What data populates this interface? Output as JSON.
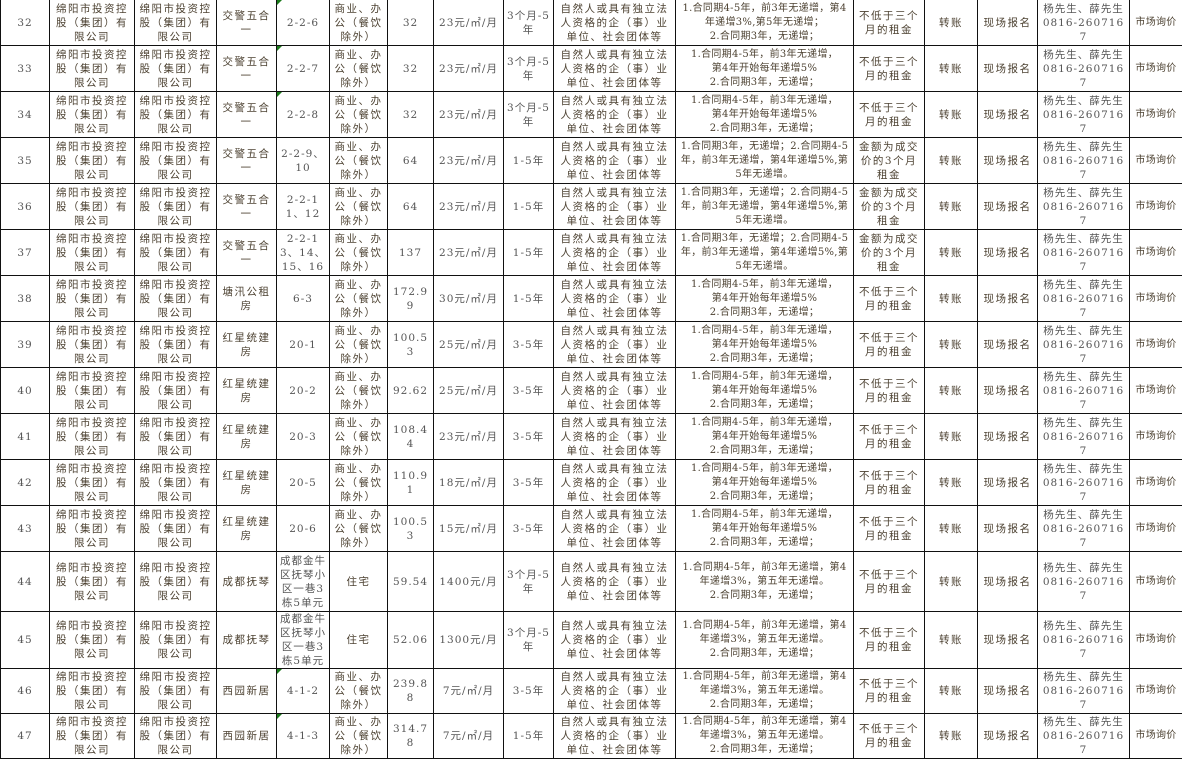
{
  "colors": {
    "text": "#4d4232",
    "border": "#111111",
    "comment_marker": "#1a7a1a"
  },
  "rows": [
    {
      "no": "32",
      "lessor": "绵阳市投资控股（集团）有限公司",
      "owner": "绵阳市投资控股（集团）有限公司",
      "project": "交警五合一",
      "unit": "2-2-6",
      "use": "商业、办公（餐饮除外）",
      "area": "32",
      "price": "23元/㎡/月",
      "term": "3个月-5年",
      "requirement": "自然人或具有独立法人资格的企（事）业单位、社会团体等",
      "increment": "1.合同期4-5年，前3年无递增，第4年递增3%,第5年无递增；\n2.合同期3年，无递增；",
      "deposit": "不低于三个月的租金",
      "payment": "转账",
      "registration": "现场报名",
      "contact": "杨先生、薛先生\n0816-2607167",
      "base_price": "市场询价",
      "marker": true
    },
    {
      "no": "33",
      "lessor": "绵阳市投资控股（集团）有限公司",
      "owner": "绵阳市投资控股（集团）有限公司",
      "project": "交警五合一",
      "unit": "2-2-7",
      "use": "商业、办公（餐饮除外）",
      "area": "32",
      "price": "23元/㎡/月",
      "term": "3个月-5年",
      "requirement": "自然人或具有独立法人资格的企（事）业单位、社会团体等",
      "increment": "1.合同期4-5年，前3年无递增，\n第4年开始每年递增5%\n2.合同期3年，无递增；",
      "deposit": "不低于三个月的租金",
      "payment": "转账",
      "registration": "现场报名",
      "contact": "杨先生、薛先生\n0816-2607167",
      "base_price": "市场询价",
      "marker": true
    },
    {
      "no": "34",
      "lessor": "绵阳市投资控股（集团）有限公司",
      "owner": "绵阳市投资控股（集团）有限公司",
      "project": "交警五合一",
      "unit": "2-2-8",
      "use": "商业、办公（餐饮除外）",
      "area": "32",
      "price": "23元/㎡/月",
      "term": "3个月-5年",
      "requirement": "自然人或具有独立法人资格的企（事）业单位、社会团体等",
      "increment": "1.合同期4-5年，前3年无递增，\n第4年开始每年递增5%\n2.合同期3年，无递增；",
      "deposit": "不低于三个月的租金",
      "payment": "转账",
      "registration": "现场报名",
      "contact": "杨先生、薛先生\n0816-2607167",
      "base_price": "市场询价",
      "marker": true
    },
    {
      "no": "35",
      "lessor": "绵阳市投资控股（集团）有限公司",
      "owner": "绵阳市投资控股（集团）有限公司",
      "project": "交警五合一",
      "unit": "2-2-9、10",
      "use": "商业、办公（餐饮除外）",
      "area": "64",
      "price": "23元/㎡/月",
      "term": "1-5年",
      "requirement": "自然人或具有独立法人资格的企（事）业单位、社会团体等",
      "increment": "1.合同期3年，无递增；2.合同期4-5年，前3年无递增，第4年递增5%,第5年无递增。",
      "deposit": "金额为成交价的3个月租金",
      "payment": "转账",
      "registration": "现场报名",
      "contact": "杨先生、薛先生\n0816-2607167",
      "base_price": "市场询价",
      "marker": false
    },
    {
      "no": "36",
      "lessor": "绵阳市投资控股（集团）有限公司",
      "owner": "绵阳市投资控股（集团）有限公司",
      "project": "交警五合一",
      "unit": "2-2-11、12",
      "use": "商业、办公（餐饮除外）",
      "area": "64",
      "price": "23元/㎡/月",
      "term": "1-5年",
      "requirement": "自然人或具有独立法人资格的企（事）业单位、社会团体等",
      "increment": "1.合同期3年，无递增；2.合同期4-5年，前3年无递增，第4年递增5%,第5年无递增。",
      "deposit": "金额为成交价的3个月租金",
      "payment": "转账",
      "registration": "现场报名",
      "contact": "杨先生、薛先生\n0816-2607167",
      "base_price": "市场询价",
      "marker": false
    },
    {
      "no": "37",
      "lessor": "绵阳市投资控股（集团）有限公司",
      "owner": "绵阳市投资控股（集团）有限公司",
      "project": "交警五合一",
      "unit": "2-2-13、14、15、16",
      "use": "商业、办公（餐饮除外）",
      "area": "137",
      "price": "23元/㎡/月",
      "term": "1-5年",
      "requirement": "自然人或具有独立法人资格的企（事）业单位、社会团体等",
      "increment": "1.合同期3年，无递增；2.合同期4-5年，前3年无递增，第4年递增5%,第5年无递增。",
      "deposit": "金额为成交价的3个月租金",
      "payment": "转账",
      "registration": "现场报名",
      "contact": "杨先生、薛先生\n0816-2607167",
      "base_price": "市场询价",
      "marker": false
    },
    {
      "no": "38",
      "lessor": "绵阳市投资控股（集团）有限公司",
      "owner": "绵阳市投资控股（集团）有限公司",
      "project": "塘汛公租房",
      "unit": "6-3",
      "use": "商业、办公（餐饮除外）",
      "area": "172.99",
      "price": "30元/㎡/月",
      "term": "1-5年",
      "requirement": "自然人或具有独立法人资格的企（事）业单位、社会团体等",
      "increment": "1.合同期4-5年，前3年无递增，\n第4年开始每年递增5%\n2.合同期3年，无递增；",
      "deposit": "不低于三个月的租金",
      "payment": "转账",
      "registration": "现场报名",
      "contact": "杨先生、薛先生\n0816-2607167",
      "base_price": "市场询价",
      "marker": false
    },
    {
      "no": "39",
      "lessor": "绵阳市投资控股（集团）有限公司",
      "owner": "绵阳市投资控股（集团）有限公司",
      "project": "红星统建房",
      "unit": "20-1",
      "use": "商业、办公（餐饮除外）",
      "area": "100.53",
      "price": "25元/㎡/月",
      "term": "3-5年",
      "requirement": "自然人或具有独立法人资格的企（事）业单位、社会团体等",
      "increment": "1.合同期4-5年，前3年无递增，\n第4年开始每年递增5%\n2.合同期3年，无递增；",
      "deposit": "不低于三个月的租金",
      "payment": "转账",
      "registration": "现场报名",
      "contact": "杨先生、薛先生\n0816-2607167",
      "base_price": "市场询价",
      "marker": false
    },
    {
      "no": "40",
      "lessor": "绵阳市投资控股（集团）有限公司",
      "owner": "绵阳市投资控股（集团）有限公司",
      "project": "红星统建房",
      "unit": "20-2",
      "use": "商业、办公（餐饮除外）",
      "area": "92.62",
      "price": "25元/㎡/月",
      "term": "3-5年",
      "requirement": "自然人或具有独立法人资格的企（事）业单位、社会团体等",
      "increment": "1.合同期4-5年，前3年无递增，\n第4年开始每年递增5%\n2.合同期3年，无递增；",
      "deposit": "不低于三个月的租金",
      "payment": "转账",
      "registration": "现场报名",
      "contact": "杨先生、薛先生\n0816-2607167",
      "base_price": "市场询价",
      "marker": false
    },
    {
      "no": "41",
      "lessor": "绵阳市投资控股（集团）有限公司",
      "owner": "绵阳市投资控股（集团）有限公司",
      "project": "红星统建房",
      "unit": "20-3",
      "use": "商业、办公（餐饮除外）",
      "area": "108.44",
      "price": "23元/㎡/月",
      "term": "3-5年",
      "requirement": "自然人或具有独立法人资格的企（事）业单位、社会团体等",
      "increment": "1.合同期4-5年，前3年无递增，\n第4年开始每年递增5%\n2.合同期3年，无递增；",
      "deposit": "不低于三个月的租金",
      "payment": "转账",
      "registration": "现场报名",
      "contact": "杨先生、薛先生\n0816-2607167",
      "base_price": "市场询价",
      "marker": false
    },
    {
      "no": "42",
      "lessor": "绵阳市投资控股（集团）有限公司",
      "owner": "绵阳市投资控股（集团）有限公司",
      "project": "红星统建房",
      "unit": "20-5",
      "use": "商业、办公（餐饮除外）",
      "area": "110.91",
      "price": "18元/㎡/月",
      "term": "3-5年",
      "requirement": "自然人或具有独立法人资格的企（事）业单位、社会团体等",
      "increment": "1.合同期4-5年，前3年无递增，\n第4年开始每年递增5%\n2.合同期3年，无递增；",
      "deposit": "不低于三个月的租金",
      "payment": "转账",
      "registration": "现场报名",
      "contact": "杨先生、薛先生\n0816-2607167",
      "base_price": "市场询价",
      "marker": false
    },
    {
      "no": "43",
      "lessor": "绵阳市投资控股（集团）有限公司",
      "owner": "绵阳市投资控股（集团）有限公司",
      "project": "红星统建房",
      "unit": "20-6",
      "use": "商业、办公（餐饮除外）",
      "area": "100.53",
      "price": "15元/㎡/月",
      "term": "3-5年",
      "requirement": "自然人或具有独立法人资格的企（事）业单位、社会团体等",
      "increment": "1.合同期4-5年，前3年无递增，\n第4年开始每年递增5%\n2.合同期3年，无递增；",
      "deposit": "不低于三个月的租金",
      "payment": "转账",
      "registration": "现场报名",
      "contact": "杨先生、薛先生\n0816-2607167",
      "base_price": "市场询价",
      "marker": false
    },
    {
      "no": "44",
      "lessor": "绵阳市投资控股（集团）有限公司",
      "owner": "绵阳市投资控股（集团）有限公司",
      "project": "成都抚琴",
      "unit": "成都金牛区抚琴小区一巷3栋5单元",
      "use": "住宅",
      "area": "59.54",
      "price": "1400元/月",
      "term": "3个月-5年",
      "requirement": "自然人或具有独立法人资格的企（事）业单位、社会团体等",
      "increment": "1.合同期4-5年，前3年无递增，第4年递增3%，第五年无递增。\n2.合同期3年，无递增；",
      "deposit": "不低于三个月的租金",
      "payment": "转账",
      "registration": "现场报名",
      "contact": "杨先生、薛先生\n0816-2607167",
      "base_price": "市场询价",
      "marker": false
    },
    {
      "no": "45",
      "lessor": "绵阳市投资控股（集团）有限公司",
      "owner": "绵阳市投资控股（集团）有限公司",
      "project": "成都抚琴",
      "unit": "成都金牛区抚琴小区一巷3栋5单元",
      "use": "住宅",
      "area": "52.06",
      "price": "1300元/月",
      "term": "3个月-5年",
      "requirement": "自然人或具有独立法人资格的企（事）业单位、社会团体等",
      "increment": "1.合同期4-5年，前3年无递增，第4年递增3%，第五年无递增。\n2.合同期3年，无递增；",
      "deposit": "不低于三个月的租金",
      "payment": "转账",
      "registration": "现场报名",
      "contact": "杨先生、薛先生\n0816-2607167",
      "base_price": "市场询价",
      "marker": false
    },
    {
      "no": "46",
      "lessor": "绵阳市投资控股（集团）有限公司",
      "owner": "绵阳市投资控股（集团）有限公司",
      "project": "西园新居",
      "unit": "4-1-2",
      "use": "商业、办公（餐饮除外）",
      "area": "239.88",
      "price": "7元/㎡/月",
      "term": "3-5年",
      "requirement": "自然人或具有独立法人资格的企（事）业单位、社会团体等",
      "increment": "1.合同期4-5年，前3年无递增，第4年递增3%，第五年无递增。\n2.合同期3年，无递增；",
      "deposit": "不低于三个月的租金",
      "payment": "转账",
      "registration": "现场报名",
      "contact": "杨先生、薛先生\n0816-2607167",
      "base_price": "市场询价",
      "marker": true
    },
    {
      "no": "47",
      "lessor": "绵阳市投资控股（集团）有限公司",
      "owner": "绵阳市投资控股（集团）有限公司",
      "project": "西园新居",
      "unit": "4-1-3",
      "use": "商业、办公（餐饮除外）",
      "area": "314.78",
      "price": "7元/㎡/月",
      "term": "1-5年",
      "requirement": "自然人或具有独立法人资格的企（事）业单位、社会团体等",
      "increment": "1.合同期4-5年，前3年无递增，第4年递增3%，第五年无递增。\n2.合同期3年，无递增；",
      "deposit": "不低于三个月的租金",
      "payment": "转账",
      "registration": "现场报名",
      "contact": "杨先生、薛先生\n0816-2607167",
      "base_price": "市场询价",
      "marker": true
    }
  ]
}
